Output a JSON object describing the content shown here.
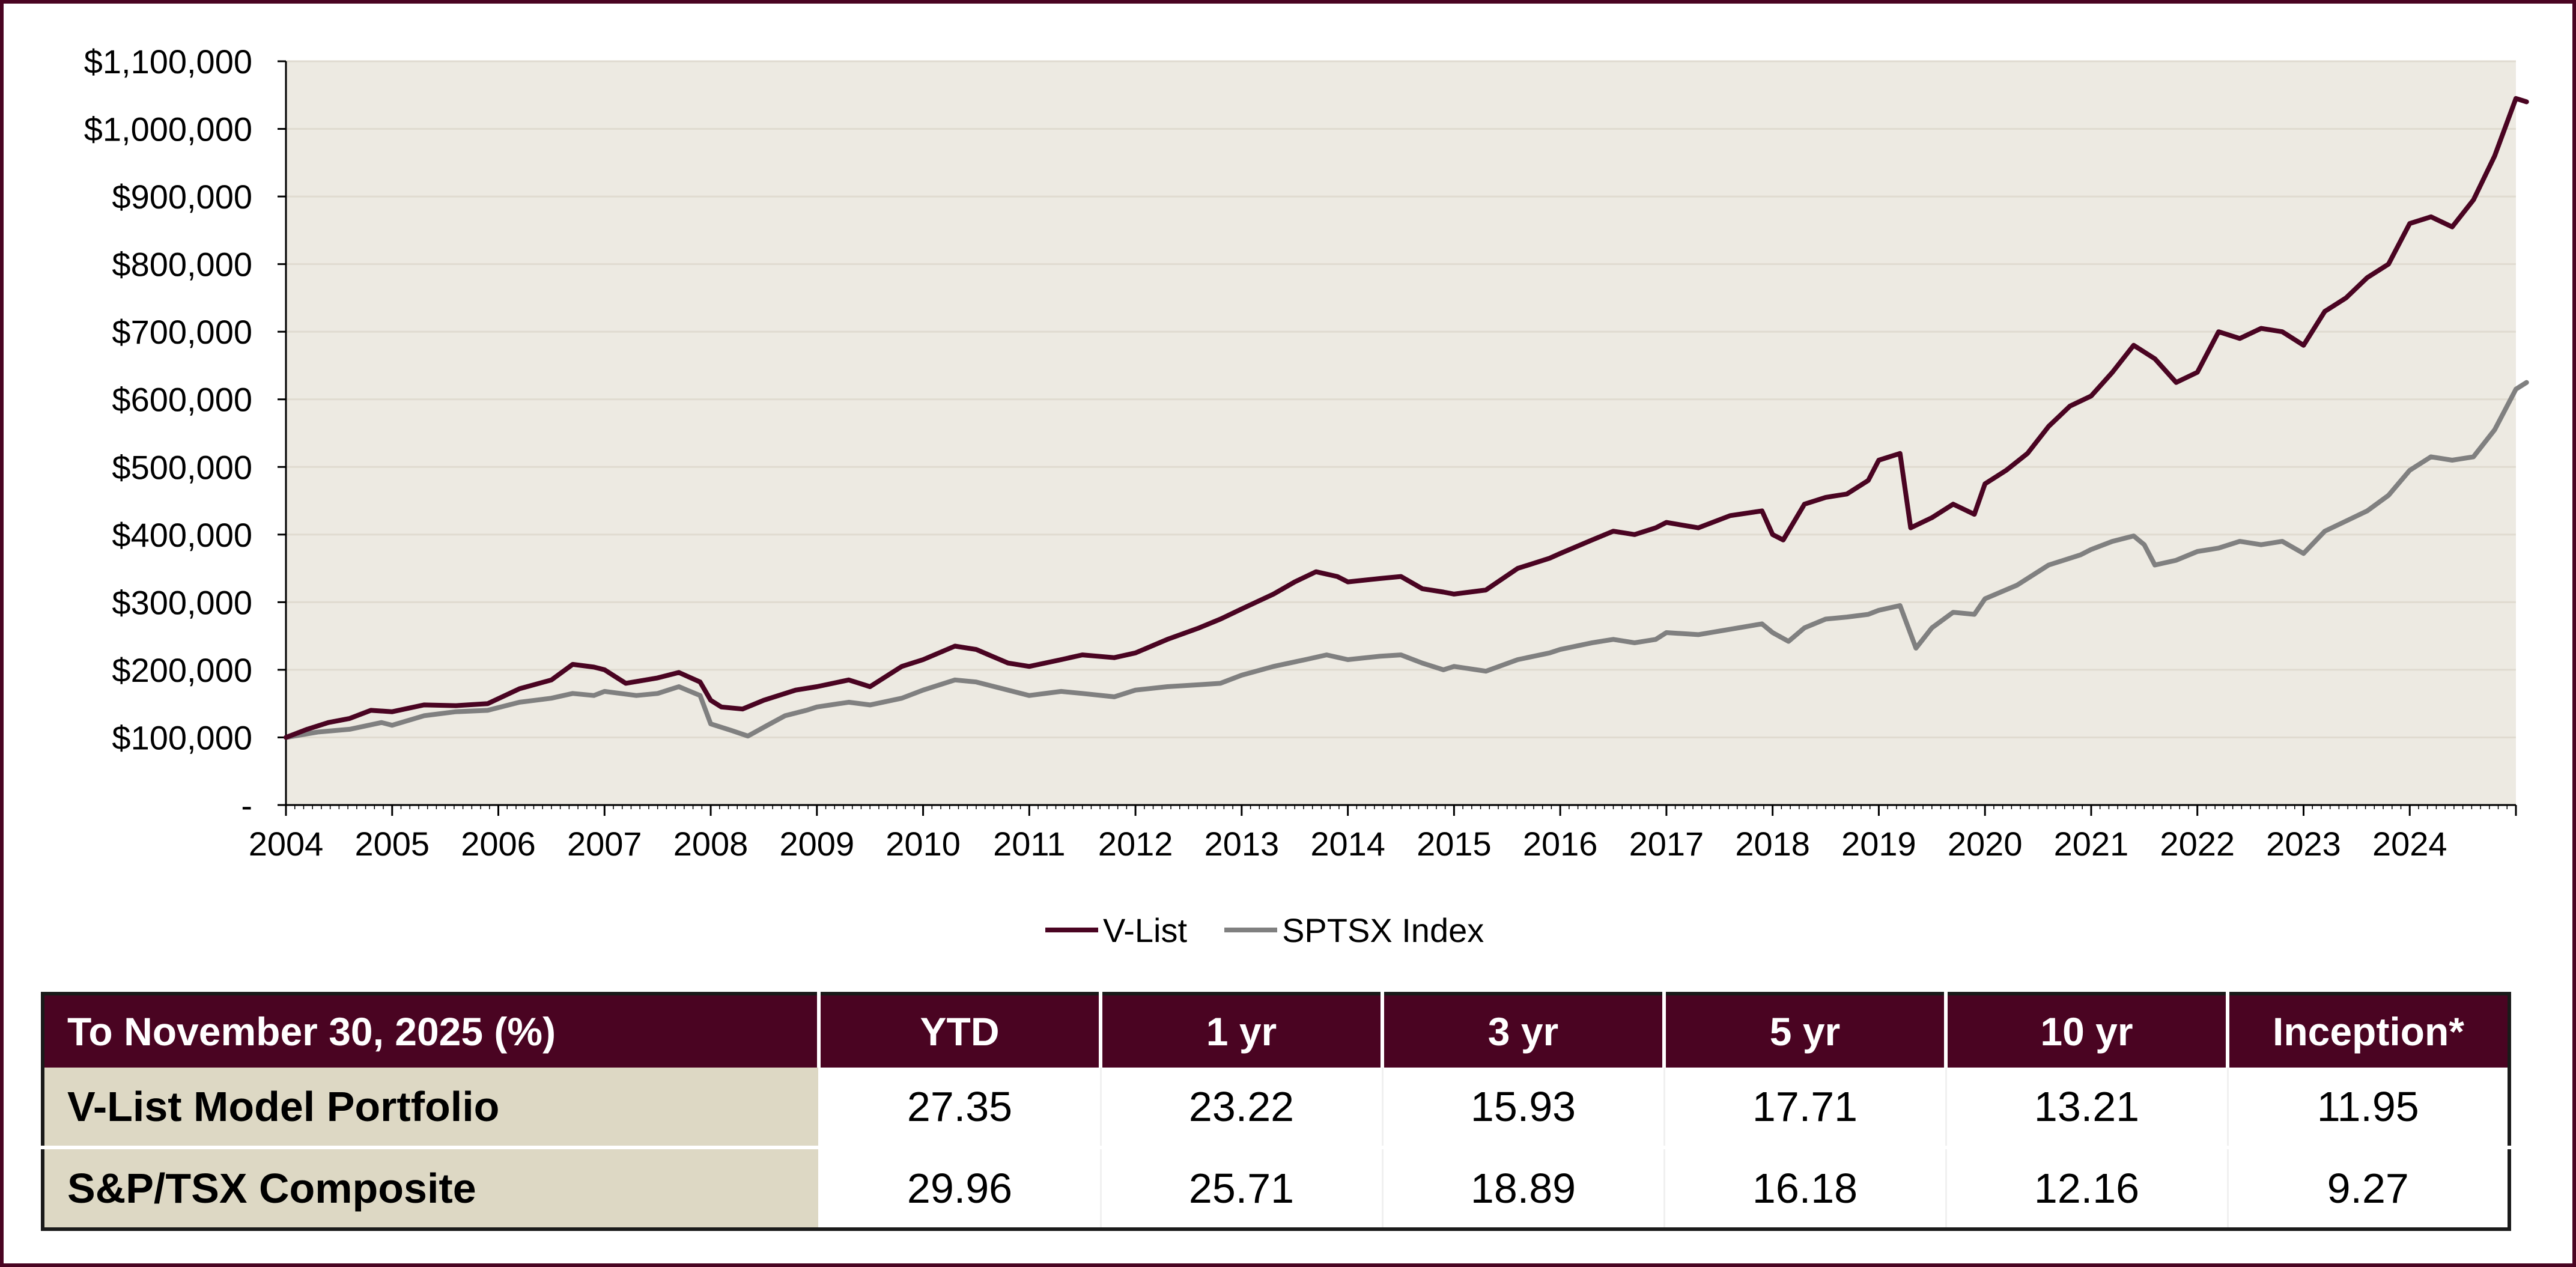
{
  "chart_data": {
    "type": "line",
    "xlim": [
      2004,
      2025
    ],
    "ylim": [
      0,
      1100000
    ],
    "y_ticks": [
      {
        "value": 0,
        "label": "-"
      },
      {
        "value": 100000,
        "label": "$100,000"
      },
      {
        "value": 200000,
        "label": "$200,000"
      },
      {
        "value": 300000,
        "label": "$300,000"
      },
      {
        "value": 400000,
        "label": "$400,000"
      },
      {
        "value": 500000,
        "label": "$500,000"
      },
      {
        "value": 600000,
        "label": "$600,000"
      },
      {
        "value": 700000,
        "label": "$700,000"
      },
      {
        "value": 800000,
        "label": "$800,000"
      },
      {
        "value": 900000,
        "label": "$900,000"
      },
      {
        "value": 1000000,
        "label": "$1,000,000"
      },
      {
        "value": 1100000,
        "label": "$1,100,000"
      }
    ],
    "x_ticks": [
      "2004",
      "2005",
      "2006",
      "2007",
      "2008",
      "2009",
      "2010",
      "2011",
      "2012",
      "2013",
      "2014",
      "2015",
      "2016",
      "2017",
      "2018",
      "2019",
      "2020",
      "2021",
      "2022",
      "2023",
      "2024"
    ],
    "grid": true,
    "legend_position": "bottom",
    "plot_background": "#edeae2",
    "series": [
      {
        "name": "V-List",
        "color": "#4a0422",
        "points": [
          [
            2004.0,
            100000
          ],
          [
            2004.2,
            112000
          ],
          [
            2004.4,
            122000
          ],
          [
            2004.6,
            128000
          ],
          [
            2004.8,
            140000
          ],
          [
            2005.0,
            138000
          ],
          [
            2005.3,
            148000
          ],
          [
            2005.6,
            147000
          ],
          [
            2005.9,
            150000
          ],
          [
            2006.2,
            172000
          ],
          [
            2006.5,
            185000
          ],
          [
            2006.7,
            208000
          ],
          [
            2006.9,
            204000
          ],
          [
            2007.0,
            200000
          ],
          [
            2007.2,
            180000
          ],
          [
            2007.5,
            188000
          ],
          [
            2007.7,
            196000
          ],
          [
            2007.9,
            182000
          ],
          [
            2008.0,
            155000
          ],
          [
            2008.1,
            145000
          ],
          [
            2008.3,
            142000
          ],
          [
            2008.5,
            155000
          ],
          [
            2008.8,
            170000
          ],
          [
            2009.0,
            175000
          ],
          [
            2009.3,
            185000
          ],
          [
            2009.5,
            175000
          ],
          [
            2009.8,
            205000
          ],
          [
            2010.0,
            215000
          ],
          [
            2010.3,
            235000
          ],
          [
            2010.5,
            230000
          ],
          [
            2010.8,
            210000
          ],
          [
            2011.0,
            205000
          ],
          [
            2011.3,
            215000
          ],
          [
            2011.5,
            222000
          ],
          [
            2011.8,
            218000
          ],
          [
            2012.0,
            225000
          ],
          [
            2012.3,
            245000
          ],
          [
            2012.6,
            262000
          ],
          [
            2012.8,
            275000
          ],
          [
            2013.0,
            290000
          ],
          [
            2013.3,
            312000
          ],
          [
            2013.5,
            330000
          ],
          [
            2013.7,
            345000
          ],
          [
            2013.9,
            338000
          ],
          [
            2014.0,
            330000
          ],
          [
            2014.3,
            335000
          ],
          [
            2014.5,
            338000
          ],
          [
            2014.7,
            320000
          ],
          [
            2014.9,
            315000
          ],
          [
            2015.0,
            312000
          ],
          [
            2015.3,
            318000
          ],
          [
            2015.6,
            350000
          ],
          [
            2015.9,
            365000
          ],
          [
            2016.0,
            372000
          ],
          [
            2016.3,
            392000
          ],
          [
            2016.5,
            405000
          ],
          [
            2016.7,
            400000
          ],
          [
            2016.9,
            410000
          ],
          [
            2017.0,
            418000
          ],
          [
            2017.3,
            410000
          ],
          [
            2017.6,
            428000
          ],
          [
            2017.9,
            435000
          ],
          [
            2018.0,
            400000
          ],
          [
            2018.1,
            392000
          ],
          [
            2018.3,
            445000
          ],
          [
            2018.5,
            455000
          ],
          [
            2018.7,
            460000
          ],
          [
            2018.9,
            480000
          ],
          [
            2019.0,
            510000
          ],
          [
            2019.2,
            520000
          ],
          [
            2019.3,
            410000
          ],
          [
            2019.5,
            425000
          ],
          [
            2019.7,
            445000
          ],
          [
            2019.9,
            430000
          ],
          [
            2020.0,
            475000
          ],
          [
            2020.2,
            495000
          ],
          [
            2020.4,
            520000
          ],
          [
            2020.6,
            560000
          ],
          [
            2020.8,
            590000
          ],
          [
            2021.0,
            605000
          ],
          [
            2021.2,
            640000
          ],
          [
            2021.4,
            680000
          ],
          [
            2021.6,
            660000
          ],
          [
            2021.8,
            625000
          ],
          [
            2022.0,
            640000
          ],
          [
            2022.2,
            700000
          ],
          [
            2022.4,
            690000
          ],
          [
            2022.6,
            705000
          ],
          [
            2022.8,
            700000
          ],
          [
            2023.0,
            680000
          ],
          [
            2023.2,
            730000
          ],
          [
            2023.4,
            750000
          ],
          [
            2023.6,
            780000
          ],
          [
            2023.8,
            800000
          ],
          [
            2024.0,
            860000
          ],
          [
            2024.2,
            870000
          ],
          [
            2024.4,
            855000
          ],
          [
            2024.6,
            895000
          ],
          [
            2024.8,
            960000
          ],
          [
            2025.0,
            1045000
          ],
          [
            2025.1,
            1040000
          ]
        ]
      },
      {
        "name": "SPTSX Index",
        "color": "#808080",
        "points": [
          [
            2004.0,
            100000
          ],
          [
            2004.3,
            108000
          ],
          [
            2004.6,
            112000
          ],
          [
            2004.9,
            122000
          ],
          [
            2005.0,
            118000
          ],
          [
            2005.3,
            132000
          ],
          [
            2005.6,
            138000
          ],
          [
            2005.9,
            140000
          ],
          [
            2006.2,
            152000
          ],
          [
            2006.5,
            158000
          ],
          [
            2006.7,
            165000
          ],
          [
            2006.9,
            162000
          ],
          [
            2007.0,
            168000
          ],
          [
            2007.3,
            162000
          ],
          [
            2007.5,
            165000
          ],
          [
            2007.7,
            175000
          ],
          [
            2007.9,
            162000
          ],
          [
            2008.0,
            120000
          ],
          [
            2008.2,
            110000
          ],
          [
            2008.35,
            102000
          ],
          [
            2008.5,
            115000
          ],
          [
            2008.7,
            132000
          ],
          [
            2008.9,
            140000
          ],
          [
            2009.0,
            145000
          ],
          [
            2009.3,
            152000
          ],
          [
            2009.5,
            148000
          ],
          [
            2009.8,
            158000
          ],
          [
            2010.0,
            170000
          ],
          [
            2010.3,
            185000
          ],
          [
            2010.5,
            182000
          ],
          [
            2010.8,
            170000
          ],
          [
            2011.0,
            162000
          ],
          [
            2011.3,
            168000
          ],
          [
            2011.5,
            165000
          ],
          [
            2011.8,
            160000
          ],
          [
            2012.0,
            170000
          ],
          [
            2012.3,
            175000
          ],
          [
            2012.6,
            178000
          ],
          [
            2012.8,
            180000
          ],
          [
            2013.0,
            192000
          ],
          [
            2013.3,
            205000
          ],
          [
            2013.6,
            215000
          ],
          [
            2013.8,
            222000
          ],
          [
            2014.0,
            215000
          ],
          [
            2014.3,
            220000
          ],
          [
            2014.5,
            222000
          ],
          [
            2014.7,
            210000
          ],
          [
            2014.9,
            200000
          ],
          [
            2015.0,
            205000
          ],
          [
            2015.3,
            198000
          ],
          [
            2015.6,
            215000
          ],
          [
            2015.9,
            225000
          ],
          [
            2016.0,
            230000
          ],
          [
            2016.3,
            240000
          ],
          [
            2016.5,
            245000
          ],
          [
            2016.7,
            240000
          ],
          [
            2016.9,
            245000
          ],
          [
            2017.0,
            255000
          ],
          [
            2017.3,
            252000
          ],
          [
            2017.6,
            260000
          ],
          [
            2017.9,
            268000
          ],
          [
            2018.0,
            255000
          ],
          [
            2018.15,
            242000
          ],
          [
            2018.3,
            262000
          ],
          [
            2018.5,
            275000
          ],
          [
            2018.7,
            278000
          ],
          [
            2018.9,
            282000
          ],
          [
            2019.0,
            288000
          ],
          [
            2019.2,
            295000
          ],
          [
            2019.35,
            232000
          ],
          [
            2019.5,
            262000
          ],
          [
            2019.7,
            285000
          ],
          [
            2019.9,
            282000
          ],
          [
            2020.0,
            305000
          ],
          [
            2020.3,
            325000
          ],
          [
            2020.6,
            355000
          ],
          [
            2020.9,
            370000
          ],
          [
            2021.0,
            378000
          ],
          [
            2021.2,
            390000
          ],
          [
            2021.4,
            398000
          ],
          [
            2021.5,
            385000
          ],
          [
            2021.6,
            355000
          ],
          [
            2021.8,
            362000
          ],
          [
            2022.0,
            375000
          ],
          [
            2022.2,
            380000
          ],
          [
            2022.4,
            390000
          ],
          [
            2022.6,
            385000
          ],
          [
            2022.8,
            390000
          ],
          [
            2023.0,
            372000
          ],
          [
            2023.2,
            405000
          ],
          [
            2023.4,
            420000
          ],
          [
            2023.6,
            435000
          ],
          [
            2023.8,
            458000
          ],
          [
            2024.0,
            495000
          ],
          [
            2024.2,
            515000
          ],
          [
            2024.4,
            510000
          ],
          [
            2024.6,
            515000
          ],
          [
            2024.8,
            555000
          ],
          [
            2025.0,
            615000
          ],
          [
            2025.1,
            625000
          ]
        ]
      }
    ]
  },
  "table": {
    "header_color": "#4a0422",
    "label_cell_color": "#ddd8c4",
    "header": [
      "To November 30, 2025 (%)",
      "YTD",
      "1 yr",
      "3 yr",
      "5 yr",
      "10 yr",
      "Inception*"
    ],
    "rows": [
      {
        "label": "V-List Model Portfolio",
        "values": [
          "27.35",
          "23.22",
          "15.93",
          "17.71",
          "13.21",
          "11.95"
        ]
      },
      {
        "label": "S&P/TSX Composite",
        "values": [
          "29.96",
          "25.71",
          "18.89",
          "16.18",
          "12.16",
          "9.27"
        ]
      }
    ]
  }
}
